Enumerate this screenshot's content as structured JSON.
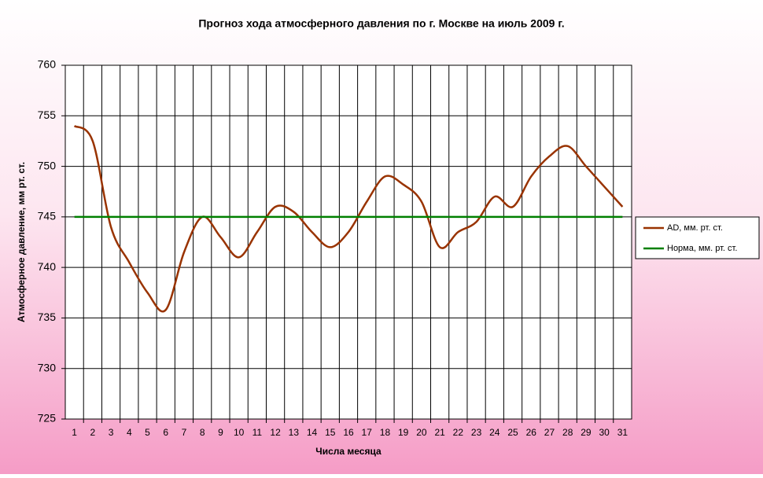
{
  "chart_data": {
    "type": "line",
    "title": "Прогноз хода атмосферного давления по г. Москве на июль 2009 г.",
    "x_label": "Числа месяца",
    "y_label": "Атмосферное давление, мм рт. ст.",
    "categories": [
      "1",
      "2",
      "3",
      "4",
      "5",
      "6",
      "7",
      "8",
      "9",
      "10",
      "11",
      "12",
      "13",
      "14",
      "15",
      "16",
      "17",
      "18",
      "19",
      "20",
      "21",
      "22",
      "23",
      "24",
      "25",
      "26",
      "27",
      "28",
      "29",
      "30",
      "31"
    ],
    "series": [
      {
        "name": "AD, мм. рт. ст.",
        "color": "#993300",
        "values": [
          754,
          752.5,
          744,
          740.5,
          737.5,
          735.8,
          741.5,
          745,
          743,
          741,
          743.5,
          746,
          745.5,
          743.5,
          742,
          743.5,
          746.5,
          749,
          748.2,
          746.5,
          742,
          743.5,
          744.5,
          747,
          746,
          749,
          751,
          752,
          750,
          748,
          746
        ]
      },
      {
        "name": "Норма, мм. рт. ст.",
        "color": "#008000",
        "values": [
          745,
          745,
          745,
          745,
          745,
          745,
          745,
          745,
          745,
          745,
          745,
          745,
          745,
          745,
          745,
          745,
          745,
          745,
          745,
          745,
          745,
          745,
          745,
          745,
          745,
          745,
          745,
          745,
          745,
          745,
          745
        ]
      }
    ],
    "ylim": [
      725,
      760
    ],
    "yticks": [
      725,
      730,
      735,
      740,
      745,
      750,
      755,
      760
    ],
    "grid": true,
    "legend": "right"
  }
}
